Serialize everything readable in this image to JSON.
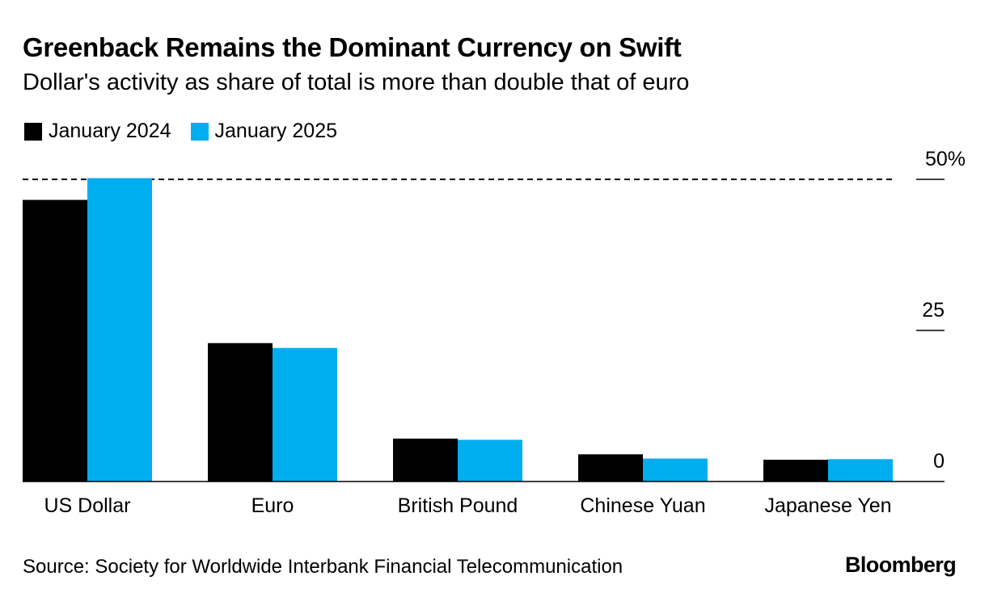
{
  "header": {
    "title": "Greenback Remains the Dominant Currency on Swift",
    "subtitle": "Dollar's activity as share of total is more than double that of euro"
  },
  "legend": {
    "items": [
      {
        "label": "January 2024",
        "color": "#000000"
      },
      {
        "label": "January 2025",
        "color": "#00aeef"
      }
    ]
  },
  "chart_data": {
    "type": "bar",
    "categories": [
      "US Dollar",
      "Euro",
      "British Pound",
      "Chinese Yuan",
      "Japanese Yen"
    ],
    "series": [
      {
        "name": "January 2024",
        "color": "#000000",
        "values": [
          46.6,
          22.9,
          7.1,
          4.5,
          3.6
        ]
      },
      {
        "name": "January 2025",
        "color": "#00aeef",
        "values": [
          50.2,
          22.1,
          6.9,
          3.8,
          3.7
        ]
      }
    ],
    "yticks": [
      {
        "value": 0,
        "label": "0"
      },
      {
        "value": 25,
        "label": "25"
      },
      {
        "value": 50,
        "label": "50%"
      }
    ],
    "ylim": [
      0,
      50
    ],
    "reference_line": {
      "value": 50,
      "style": "dashed"
    },
    "title": "Greenback Remains the Dominant Currency on Swift",
    "xlabel": "",
    "ylabel": "",
    "grid": false,
    "legend_position": "top-left"
  },
  "footer": {
    "source": "Source: Society for Worldwide Interbank Financial Telecommunication",
    "logo": "Bloomberg"
  }
}
